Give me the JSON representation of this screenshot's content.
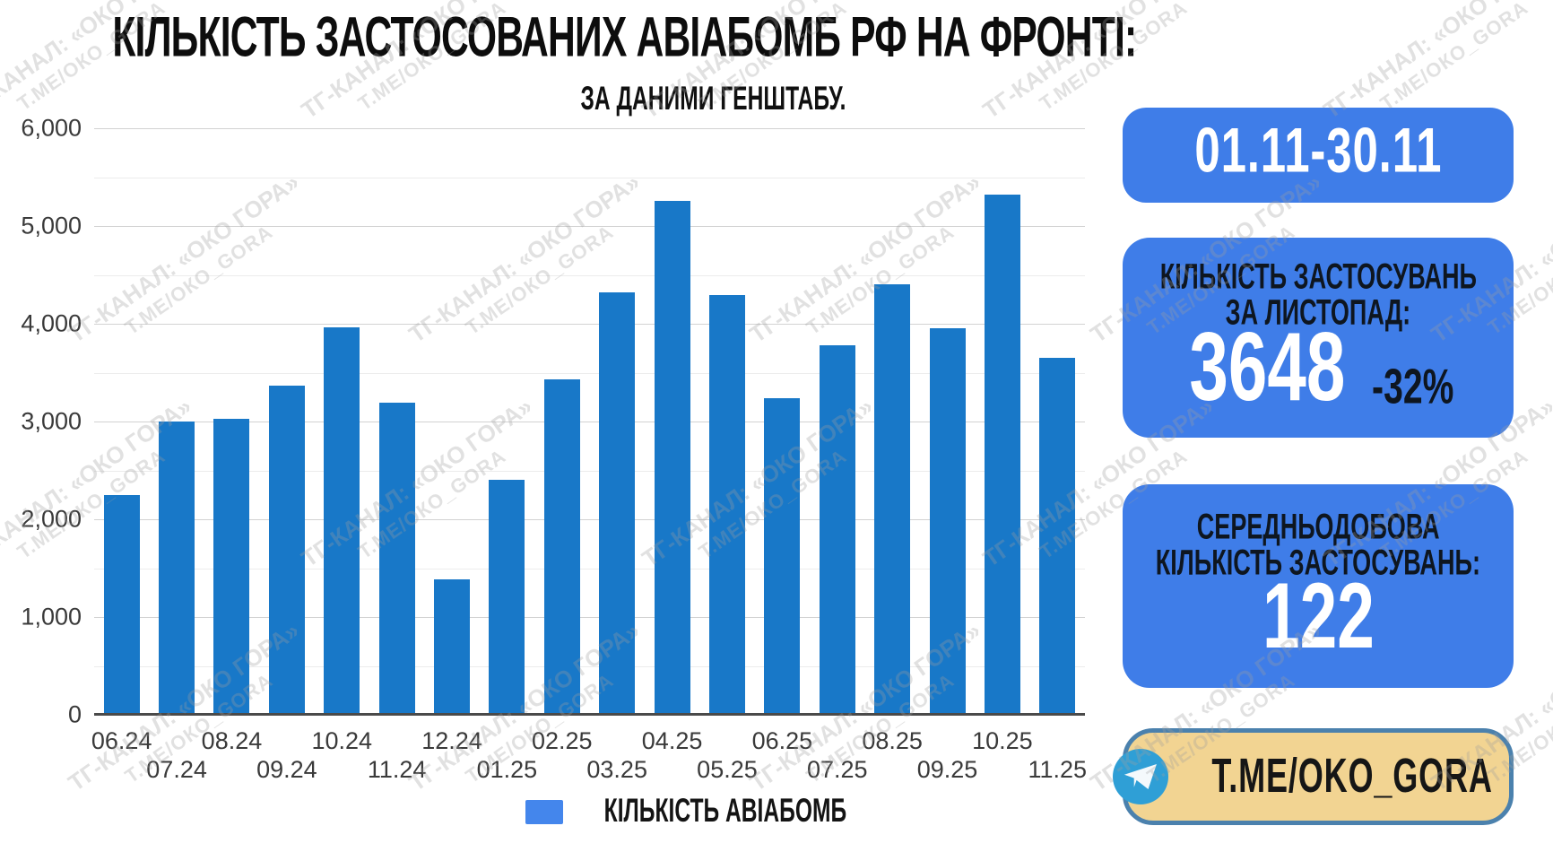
{
  "title": "КІЛЬКІСТЬ ЗАСТОСОВАНИХ АВІАБОМБ РФ НА ФРОНТІ:",
  "subtitle": "ЗА ДАНИМИ ГЕНШТАБУ.",
  "chart_data": {
    "type": "bar",
    "categories": [
      "06.24",
      "07.24",
      "08.24",
      "09.24",
      "10.24",
      "11.24",
      "12.24",
      "01.25",
      "02.25",
      "03.25",
      "04.25",
      "05.25",
      "06.25",
      "07.25",
      "08.25",
      "09.25",
      "10.25",
      "11.25"
    ],
    "values": [
      2250,
      3000,
      3030,
      3370,
      3960,
      3190,
      1390,
      2400,
      3430,
      4320,
      5260,
      4290,
      3240,
      3780,
      4400,
      3950,
      5320,
      3648
    ],
    "series_name": "КІЛЬКІСТЬ АВІАБОМБ",
    "title": "КІЛЬКІСТЬ ЗАСТОСОВАНИХ АВІАБОМБ РФ НА ФРОНТІ:",
    "subtitle": "ЗА ДАНИМИ ГЕНШТАБУ.",
    "xlabel": "",
    "ylabel": "",
    "ylim": [
      0,
      6000
    ],
    "ytick_labels": [
      "0",
      "1,000",
      "2,000",
      "3,000",
      "4,000",
      "5,000",
      "6,000"
    ],
    "ytick_interval": 1000,
    "minor_gridline_interval": 500,
    "grid": true,
    "legend_position": "bottom",
    "bar_color": "#1878c8"
  },
  "legend": {
    "label": "КІЛЬКІСТЬ АВІАБОМБ",
    "swatch_color": "#4486ec"
  },
  "cards": {
    "period": {
      "value": "01.11-30.11"
    },
    "month": {
      "title_line1": "КІЛЬКІСТЬ ЗАСТОСУВАНЬ",
      "title_line2": "ЗА ЛИСТОПАД:",
      "value": "3648",
      "delta": "-32%"
    },
    "daily": {
      "title_line1": "СЕРЕДНЬОДОБОВА",
      "title_line2": "КІЛЬКІСТЬ ЗАСТОСУВАНЬ:",
      "value": "122"
    },
    "telegram": {
      "handle": "T.ME/OKO_GORA",
      "icon": "telegram-plane-icon"
    }
  },
  "watermark": {
    "line1": "ТГ-КАНАЛ: «ОКО ГОРА»",
    "line2": "Т.МЕ/ОКО_GORA"
  },
  "colors": {
    "bar": "#1878c8",
    "card_blue": "#3f7de8",
    "card_text_dark": "#0e1620",
    "tan_card_bg": "#f2d492",
    "tan_card_border": "#4b81ad",
    "telegram_icon": "#2f9fd6",
    "gridline_major": "#d2d2d2",
    "gridline_minor": "#ececec",
    "axis_text": "#3a3a3a"
  }
}
